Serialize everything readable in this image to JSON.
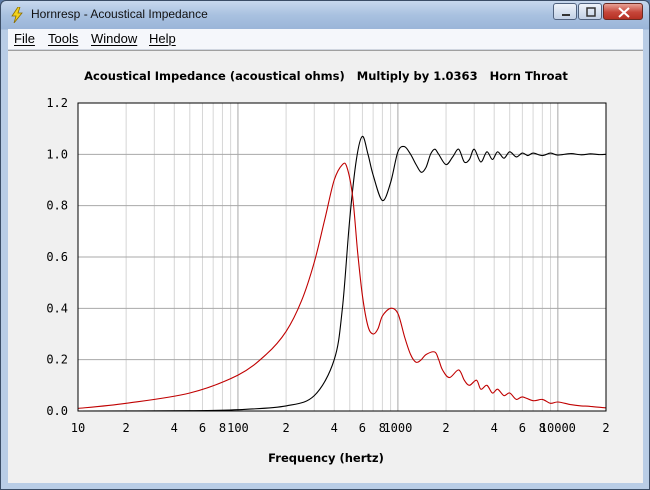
{
  "window": {
    "title": "Hornresp - Acoustical Impedance"
  },
  "menu": {
    "items": [
      {
        "label": "File",
        "name": "menu-file"
      },
      {
        "label": "Tools",
        "name": "menu-tools"
      },
      {
        "label": "Window",
        "name": "menu-window"
      },
      {
        "label": "Help",
        "name": "menu-help"
      }
    ]
  },
  "chart_data": {
    "type": "line",
    "title": "Acoustical Impedance (acoustical ohms)   Multiply by 1.0363   Horn Throat",
    "xlabel": "Frequency (hertz)",
    "ylabel": "",
    "x_scale": "log",
    "xlim": [
      10,
      20000
    ],
    "ylim": [
      0,
      1.2
    ],
    "grid": true,
    "legend": "none",
    "x_ticks": [
      {
        "value": 10,
        "label": "10"
      },
      {
        "value": 20,
        "label": "2"
      },
      {
        "value": 40,
        "label": "4"
      },
      {
        "value": 60,
        "label": "6"
      },
      {
        "value": 80,
        "label": "8"
      },
      {
        "value": 100,
        "label": "100"
      },
      {
        "value": 200,
        "label": "2"
      },
      {
        "value": 400,
        "label": "4"
      },
      {
        "value": 600,
        "label": "6"
      },
      {
        "value": 800,
        "label": "8"
      },
      {
        "value": 1000,
        "label": "1000"
      },
      {
        "value": 2000,
        "label": "2"
      },
      {
        "value": 4000,
        "label": "4"
      },
      {
        "value": 6000,
        "label": "6"
      },
      {
        "value": 8000,
        "label": "8"
      },
      {
        "value": 10000,
        "label": "10000"
      },
      {
        "value": 20000,
        "label": "2"
      }
    ],
    "y_ticks": [
      {
        "value": 0,
        "label": "0.0"
      },
      {
        "value": 0.2,
        "label": "0.2"
      },
      {
        "value": 0.4,
        "label": "0.4"
      },
      {
        "value": 0.6,
        "label": "0.6"
      },
      {
        "value": 0.8,
        "label": "0.8"
      },
      {
        "value": 1.0,
        "label": "1.0"
      },
      {
        "value": 1.2,
        "label": "1.2"
      }
    ],
    "series": [
      {
        "color": "#000000",
        "x": [
          10,
          50,
          100,
          200,
          300,
          400,
          450,
          500,
          550,
          600,
          650,
          700,
          800,
          900,
          1000,
          1100,
          1200,
          1300,
          1400,
          1500,
          1600,
          1700,
          1800,
          2000,
          2200,
          2400,
          2600,
          2800,
          3000,
          3300,
          3600,
          3900,
          4200,
          4600,
          5000,
          5500,
          6000,
          6500,
          7000,
          8000,
          9000,
          10000,
          12000,
          14000,
          16000,
          18000,
          20000
        ],
        "y": [
          0,
          0.001,
          0.005,
          0.02,
          0.06,
          0.2,
          0.4,
          0.75,
          0.98,
          1.07,
          1.0,
          0.92,
          0.82,
          0.89,
          1.01,
          1.03,
          1.0,
          0.96,
          0.93,
          0.95,
          1.0,
          1.02,
          1.0,
          0.96,
          0.99,
          1.02,
          0.97,
          0.98,
          1.02,
          0.97,
          1.01,
          0.98,
          1.01,
          0.985,
          1.01,
          0.99,
          1.005,
          0.995,
          1.005,
          0.995,
          1.005,
          0.997,
          1.003,
          0.998,
          1.002,
          0.999,
          1.0
        ]
      },
      {
        "color": "#c00000",
        "x": [
          10,
          20,
          50,
          100,
          150,
          200,
          250,
          300,
          350,
          400,
          450,
          480,
          520,
          560,
          600,
          650,
          700,
          750,
          800,
          900,
          1000,
          1100,
          1200,
          1300,
          1400,
          1500,
          1700,
          1800,
          1900,
          2100,
          2400,
          2600,
          2800,
          3100,
          3300,
          3600,
          3900,
          4200,
          4600,
          5000,
          5500,
          6000,
          7000,
          8000,
          9000,
          10000,
          12000,
          14000,
          16000,
          20000
        ],
        "y": [
          0.01,
          0.03,
          0.07,
          0.14,
          0.22,
          0.31,
          0.43,
          0.58,
          0.75,
          0.9,
          0.96,
          0.95,
          0.84,
          0.62,
          0.45,
          0.33,
          0.3,
          0.32,
          0.37,
          0.4,
          0.38,
          0.29,
          0.22,
          0.19,
          0.2,
          0.22,
          0.23,
          0.2,
          0.16,
          0.13,
          0.16,
          0.12,
          0.1,
          0.12,
          0.085,
          0.1,
          0.07,
          0.085,
          0.06,
          0.07,
          0.045,
          0.055,
          0.04,
          0.045,
          0.03,
          0.035,
          0.025,
          0.02,
          0.018,
          0.012
        ]
      }
    ]
  }
}
